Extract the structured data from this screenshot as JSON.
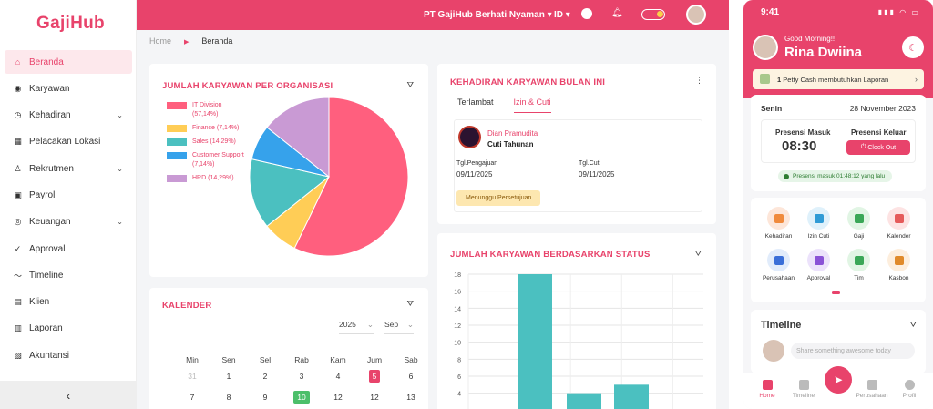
{
  "brand": {
    "logo": "GajiHub",
    "accent": "#e8436b"
  },
  "sidebar": {
    "items": [
      {
        "label": "Beranda",
        "icon": "home-icon",
        "active": true,
        "chevron": false
      },
      {
        "label": "Karyawan",
        "icon": "users-icon",
        "chevron": false
      },
      {
        "label": "Kehadiran",
        "icon": "clock-icon",
        "chevron": true
      },
      {
        "label": "Pelacakan Lokasi",
        "icon": "map-icon",
        "chevron": false
      },
      {
        "label": "Rekrutmen",
        "icon": "user-plus-icon",
        "chevron": true
      },
      {
        "label": "Payroll",
        "icon": "wallet-icon",
        "chevron": false
      },
      {
        "label": "Keuangan",
        "icon": "coin-icon",
        "chevron": true
      },
      {
        "label": "Approval",
        "icon": "check-circle-icon",
        "chevron": false
      },
      {
        "label": "Timeline",
        "icon": "trend-icon",
        "chevron": false
      },
      {
        "label": "Klien",
        "icon": "briefcase-icon",
        "chevron": false
      },
      {
        "label": "Laporan",
        "icon": "bar-chart-icon",
        "chevron": false
      },
      {
        "label": "Akuntansi",
        "icon": "book-icon",
        "chevron": false
      }
    ],
    "collapse_icon": "‹"
  },
  "topbar": {
    "org": "PT GajiHub Berhati Nyaman",
    "lang": "ID"
  },
  "breadcrumb": {
    "home": "Home",
    "current": "Beranda"
  },
  "org_card": {
    "title": "JUMLAH KARYAWAN PER ORGANISASI"
  },
  "attendance_card": {
    "title": "KEHADIRAN KARYAWAN BULAN INI",
    "tabs": [
      "Terlambat",
      "Izin & Cuti"
    ],
    "active_tab": 1,
    "leave": {
      "name": "Dian Pramudita",
      "type": "Cuti Tahunan",
      "submit_label": "Tgl.Pengajuan",
      "submit_date": "09/11/2025",
      "leave_label": "Tgl.Cuti",
      "leave_date": "09/11/2025",
      "status": "Menunggu Persetujuan"
    }
  },
  "calendar": {
    "title": "KALENDER",
    "year": "2025",
    "month": "Sep",
    "weekdays": [
      "Min",
      "Sen",
      "Sel",
      "Rab",
      "Kam",
      "Jum",
      "Sab"
    ],
    "rows": [
      [
        "31",
        "1",
        "2",
        "3",
        "4",
        "5",
        "6"
      ],
      [
        "7",
        "8",
        "9",
        "10",
        "12",
        "12",
        "13"
      ]
    ],
    "today": "5",
    "selected": "10"
  },
  "status_card": {
    "title": "JUMLAH KARYAWAN BERDASARKAN STATUS"
  },
  "phone": {
    "time": "9:41",
    "greeting": "Good Morning!!",
    "name": "Rina Dwiina",
    "petty_count": "1",
    "petty_text": "Petty Cash membutuhkan Laporan",
    "day": "Senin",
    "date": "28 November 2023",
    "in_label": "Presensi Masuk",
    "in_time": "08:30",
    "out_label": "Presensi Keluar",
    "out_button": "Clock Out",
    "note": "Presensi masuk 01:48:12 yang lalu",
    "menu": [
      {
        "label": "Kehadiran",
        "bg": "#fde6d9",
        "fg": "#f08a3c"
      },
      {
        "label": "Izin Cuti",
        "bg": "#dff1fb",
        "fg": "#2f9bd6"
      },
      {
        "label": "Gaji",
        "bg": "#e1f5e4",
        "fg": "#3aa757"
      },
      {
        "label": "Kalender",
        "bg": "#fde3e3",
        "fg": "#e55a5a"
      },
      {
        "label": "Perusahaan",
        "bg": "#e1ecfb",
        "fg": "#3a6fd8"
      },
      {
        "label": "Approval",
        "bg": "#ece2fb",
        "fg": "#8a52d6"
      },
      {
        "label": "Tim",
        "bg": "#e1f5e4",
        "fg": "#3aa757"
      },
      {
        "label": "Kasbon",
        "bg": "#fdeedd",
        "fg": "#e08a2a"
      }
    ],
    "timeline_title": "Timeline",
    "timeline_placeholder": "Share something awesome today",
    "bottom_nav": [
      "Home",
      "Timeline",
      "Perusahaan",
      "Profil"
    ]
  },
  "chart_data": [
    {
      "type": "pie",
      "title": "JUMLAH KARYAWAN PER ORGANISASI",
      "slices": [
        {
          "label": "IT Division",
          "pct_label": "(57,14%)",
          "value": 57.14,
          "color": "#ff5f7e"
        },
        {
          "label": "Finance",
          "pct_label": "(7,14%)",
          "value": 7.14,
          "color": "#ffcd56"
        },
        {
          "label": "Sales",
          "pct_label": "(14,29%)",
          "value": 14.29,
          "color": "#4bc0c0"
        },
        {
          "label": "Customer Support",
          "pct_label": "(7,14%)",
          "value": 7.14,
          "color": "#36a2eb"
        },
        {
          "label": "HRD",
          "pct_label": "(14,29%)",
          "value": 14.29,
          "color": "#c99ad4"
        }
      ]
    },
    {
      "type": "bar",
      "title": "JUMLAH KARYAWAN BERDASARKAN STATUS",
      "values": [
        18,
        4,
        5
      ],
      "yticks": [
        4,
        6,
        8,
        10,
        12,
        14,
        16,
        18
      ],
      "ylim": [
        3,
        18
      ],
      "color": "#4bc0c0",
      "grid": true
    }
  ]
}
